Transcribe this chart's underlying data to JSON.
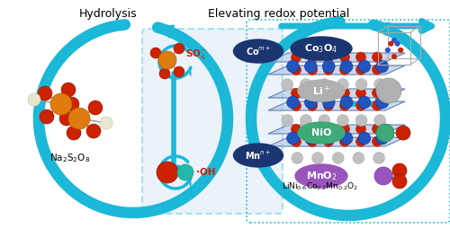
{
  "title_left": "Hydrolysis",
  "title_right": "Elevating redox potential",
  "arrow_color": "#1BB8D8",
  "na2s2o8_label": "Na$_2$S$_2$O$_8$",
  "so4_label": "SO$_4^{-}$",
  "oh_label": "·OH",
  "com_label": "Co$^{m+}$",
  "mnn_label": "Mn$^{n+}$",
  "lnmo_label": "LiNi$_{0.6}$Co$_{0.2}$Mn$_{0.2}$O$_2$",
  "co3o4_label": "Co$_3$O$_4$",
  "li_label": "Li$^+$",
  "nio_label": "NiO",
  "mno2_label": "MnO$_2$",
  "bg": "#ffffff",
  "s_color": "#E07B10",
  "o_color": "#CC2200",
  "na_color": "#E8E8D0",
  "blue_dark": "#1A3570",
  "grey_ball": "#B0B0B0",
  "green_ball": "#3DAA77",
  "purple_ball": "#9955BB",
  "layer_blue": "#7099CC",
  "layer_face": "#A8C0E0"
}
